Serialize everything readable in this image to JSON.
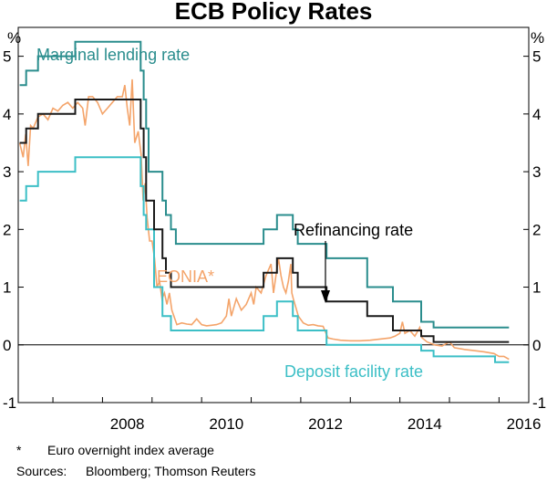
{
  "chart_data": {
    "type": "line",
    "title": "ECB Policy Rates",
    "ylabel_left": "%",
    "ylabel_right": "%",
    "ylim": [
      -1,
      5.5
    ],
    "xlim": [
      2006.3,
      2016.6
    ],
    "y_ticks": [
      -1,
      0,
      1,
      2,
      3,
      4,
      5
    ],
    "x_ticks": [
      2008,
      2010,
      2012,
      2014,
      2016
    ],
    "colors": {
      "marginal": "#2a8d8d",
      "refinancing": "#1a1a1a",
      "deposit": "#3cbfc6",
      "eonia": "#f4a46a",
      "zero_line": "#000000",
      "arrow": "#000000"
    },
    "series": [
      {
        "name": "Marginal lending rate",
        "step": true,
        "points": [
          [
            2006.33,
            4.5
          ],
          [
            2006.46,
            4.75
          ],
          [
            2006.7,
            5.0
          ],
          [
            2007.45,
            5.25
          ],
          [
            2007.67,
            5.25
          ],
          [
            2008.52,
            5.25
          ],
          [
            2008.77,
            4.75
          ],
          [
            2008.83,
            4.25
          ],
          [
            2008.88,
            3.75
          ],
          [
            2008.93,
            3.0
          ],
          [
            2009.04,
            3.0
          ],
          [
            2009.21,
            2.5
          ],
          [
            2009.28,
            2.25
          ],
          [
            2009.38,
            2.0
          ],
          [
            2009.48,
            1.75
          ],
          [
            2011.25,
            2.0
          ],
          [
            2011.52,
            2.25
          ],
          [
            2011.84,
            2.0
          ],
          [
            2011.94,
            1.75
          ],
          [
            2012.52,
            1.5
          ],
          [
            2013.34,
            1.0
          ],
          [
            2013.86,
            0.75
          ],
          [
            2014.43,
            0.4
          ],
          [
            2014.68,
            0.3
          ],
          [
            2015.95,
            0.3
          ],
          [
            2016.2,
            0.3
          ]
        ]
      },
      {
        "name": "Refinancing rate",
        "step": true,
        "points": [
          [
            2006.33,
            3.5
          ],
          [
            2006.46,
            3.75
          ],
          [
            2006.7,
            4.0
          ],
          [
            2007.45,
            4.25
          ],
          [
            2007.67,
            4.25
          ],
          [
            2008.52,
            4.25
          ],
          [
            2008.77,
            3.75
          ],
          [
            2008.83,
            3.25
          ],
          [
            2008.88,
            2.5
          ],
          [
            2009.04,
            2.0
          ],
          [
            2009.21,
            1.5
          ],
          [
            2009.28,
            1.25
          ],
          [
            2009.38,
            1.0
          ],
          [
            2011.25,
            1.25
          ],
          [
            2011.52,
            1.5
          ],
          [
            2011.84,
            1.25
          ],
          [
            2011.94,
            1.0
          ],
          [
            2012.52,
            0.75
          ],
          [
            2013.34,
            0.5
          ],
          [
            2013.86,
            0.25
          ],
          [
            2014.43,
            0.15
          ],
          [
            2014.68,
            0.05
          ],
          [
            2016.2,
            0.05
          ]
        ]
      },
      {
        "name": "Deposit facility rate",
        "step": true,
        "points": [
          [
            2006.33,
            2.5
          ],
          [
            2006.46,
            2.75
          ],
          [
            2006.7,
            3.0
          ],
          [
            2007.45,
            3.25
          ],
          [
            2007.67,
            3.25
          ],
          [
            2008.52,
            3.25
          ],
          [
            2008.77,
            2.75
          ],
          [
            2008.83,
            2.25
          ],
          [
            2008.88,
            2.0
          ],
          [
            2009.04,
            1.0
          ],
          [
            2009.21,
            0.5
          ],
          [
            2009.38,
            0.25
          ],
          [
            2011.25,
            0.5
          ],
          [
            2011.52,
            0.75
          ],
          [
            2011.84,
            0.5
          ],
          [
            2011.94,
            0.25
          ],
          [
            2012.52,
            0.0
          ],
          [
            2014.43,
            -0.1
          ],
          [
            2014.68,
            -0.2
          ],
          [
            2015.92,
            -0.3
          ],
          [
            2016.2,
            -0.3
          ]
        ]
      },
      {
        "name": "EONIA*",
        "step": false,
        "points": [
          [
            2006.33,
            3.5
          ],
          [
            2006.4,
            3.25
          ],
          [
            2006.45,
            3.65
          ],
          [
            2006.5,
            3.1
          ],
          [
            2006.55,
            3.8
          ],
          [
            2006.6,
            3.75
          ],
          [
            2006.7,
            3.95
          ],
          [
            2006.8,
            4.0
          ],
          [
            2006.9,
            3.9
          ],
          [
            2007.0,
            4.1
          ],
          [
            2007.1,
            4.05
          ],
          [
            2007.2,
            4.15
          ],
          [
            2007.3,
            4.2
          ],
          [
            2007.4,
            4.1
          ],
          [
            2007.5,
            4.2
          ],
          [
            2007.6,
            4.1
          ],
          [
            2007.65,
            3.8
          ],
          [
            2007.72,
            4.3
          ],
          [
            2007.8,
            4.3
          ],
          [
            2007.9,
            4.2
          ],
          [
            2008.0,
            4.0
          ],
          [
            2008.1,
            4.1
          ],
          [
            2008.2,
            4.2
          ],
          [
            2008.3,
            4.3
          ],
          [
            2008.4,
            4.3
          ],
          [
            2008.45,
            4.5
          ],
          [
            2008.5,
            4.1
          ],
          [
            2008.55,
            3.8
          ],
          [
            2008.6,
            4.6
          ],
          [
            2008.65,
            3.5
          ],
          [
            2008.72,
            3.7
          ],
          [
            2008.78,
            3.3
          ],
          [
            2008.82,
            2.5
          ],
          [
            2008.86,
            2.8
          ],
          [
            2008.9,
            2.2
          ],
          [
            2008.95,
            1.8
          ],
          [
            2009.0,
            1.8
          ],
          [
            2009.05,
            1.5
          ],
          [
            2009.1,
            1.0
          ],
          [
            2009.15,
            1.1
          ],
          [
            2009.2,
            0.8
          ],
          [
            2009.25,
            0.9
          ],
          [
            2009.3,
            0.7
          ],
          [
            2009.35,
            0.9
          ],
          [
            2009.4,
            0.6
          ],
          [
            2009.5,
            0.35
          ],
          [
            2009.6,
            0.38
          ],
          [
            2009.7,
            0.36
          ],
          [
            2009.8,
            0.35
          ],
          [
            2009.9,
            0.45
          ],
          [
            2010.0,
            0.35
          ],
          [
            2010.1,
            0.33
          ],
          [
            2010.2,
            0.34
          ],
          [
            2010.3,
            0.35
          ],
          [
            2010.4,
            0.38
          ],
          [
            2010.5,
            0.5
          ],
          [
            2010.55,
            0.8
          ],
          [
            2010.6,
            0.5
          ],
          [
            2010.7,
            0.8
          ],
          [
            2010.8,
            0.6
          ],
          [
            2010.9,
            0.7
          ],
          [
            2011.0,
            0.9
          ],
          [
            2011.05,
            0.7
          ],
          [
            2011.1,
            1.0
          ],
          [
            2011.2,
            0.9
          ],
          [
            2011.3,
            1.2
          ],
          [
            2011.4,
            1.4
          ],
          [
            2011.45,
            0.9
          ],
          [
            2011.5,
            1.2
          ],
          [
            2011.55,
            1.5
          ],
          [
            2011.6,
            1.2
          ],
          [
            2011.65,
            1.0
          ],
          [
            2011.7,
            0.9
          ],
          [
            2011.75,
            1.1
          ],
          [
            2011.8,
            1.4
          ],
          [
            2011.82,
            0.9
          ],
          [
            2011.85,
            0.8
          ],
          [
            2011.9,
            0.65
          ],
          [
            2011.95,
            0.5
          ],
          [
            2012.05,
            0.38
          ],
          [
            2012.15,
            0.34
          ],
          [
            2012.25,
            0.35
          ],
          [
            2012.35,
            0.33
          ],
          [
            2012.45,
            0.32
          ],
          [
            2012.55,
            0.12
          ],
          [
            2012.65,
            0.1
          ],
          [
            2012.8,
            0.08
          ],
          [
            2013.0,
            0.07
          ],
          [
            2013.2,
            0.07
          ],
          [
            2013.4,
            0.08
          ],
          [
            2013.6,
            0.1
          ],
          [
            2013.8,
            0.12
          ],
          [
            2013.9,
            0.15
          ],
          [
            2014.0,
            0.2
          ],
          [
            2014.05,
            0.4
          ],
          [
            2014.1,
            0.2
          ],
          [
            2014.2,
            0.25
          ],
          [
            2014.3,
            0.15
          ],
          [
            2014.4,
            0.3
          ],
          [
            2014.45,
            0.12
          ],
          [
            2014.55,
            0.05
          ],
          [
            2014.7,
            0.0
          ],
          [
            2014.85,
            -0.02
          ],
          [
            2015.0,
            0.05
          ],
          [
            2015.1,
            -0.05
          ],
          [
            2015.3,
            -0.08
          ],
          [
            2015.5,
            -0.1
          ],
          [
            2015.7,
            -0.12
          ],
          [
            2015.9,
            -0.15
          ],
          [
            2016.0,
            -0.2
          ],
          [
            2016.1,
            -0.2
          ],
          [
            2016.2,
            -0.25
          ]
        ]
      }
    ],
    "labels": {
      "marginal": "Marginal lending rate",
      "refinancing": "Refinancing rate",
      "eonia": "EONIA*",
      "deposit": "Deposit facility rate"
    }
  },
  "footnotes": {
    "star": "*",
    "star_text": "Euro overnight index average",
    "sources_label": "Sources:",
    "sources_text": "Bloomberg; Thomson Reuters"
  }
}
